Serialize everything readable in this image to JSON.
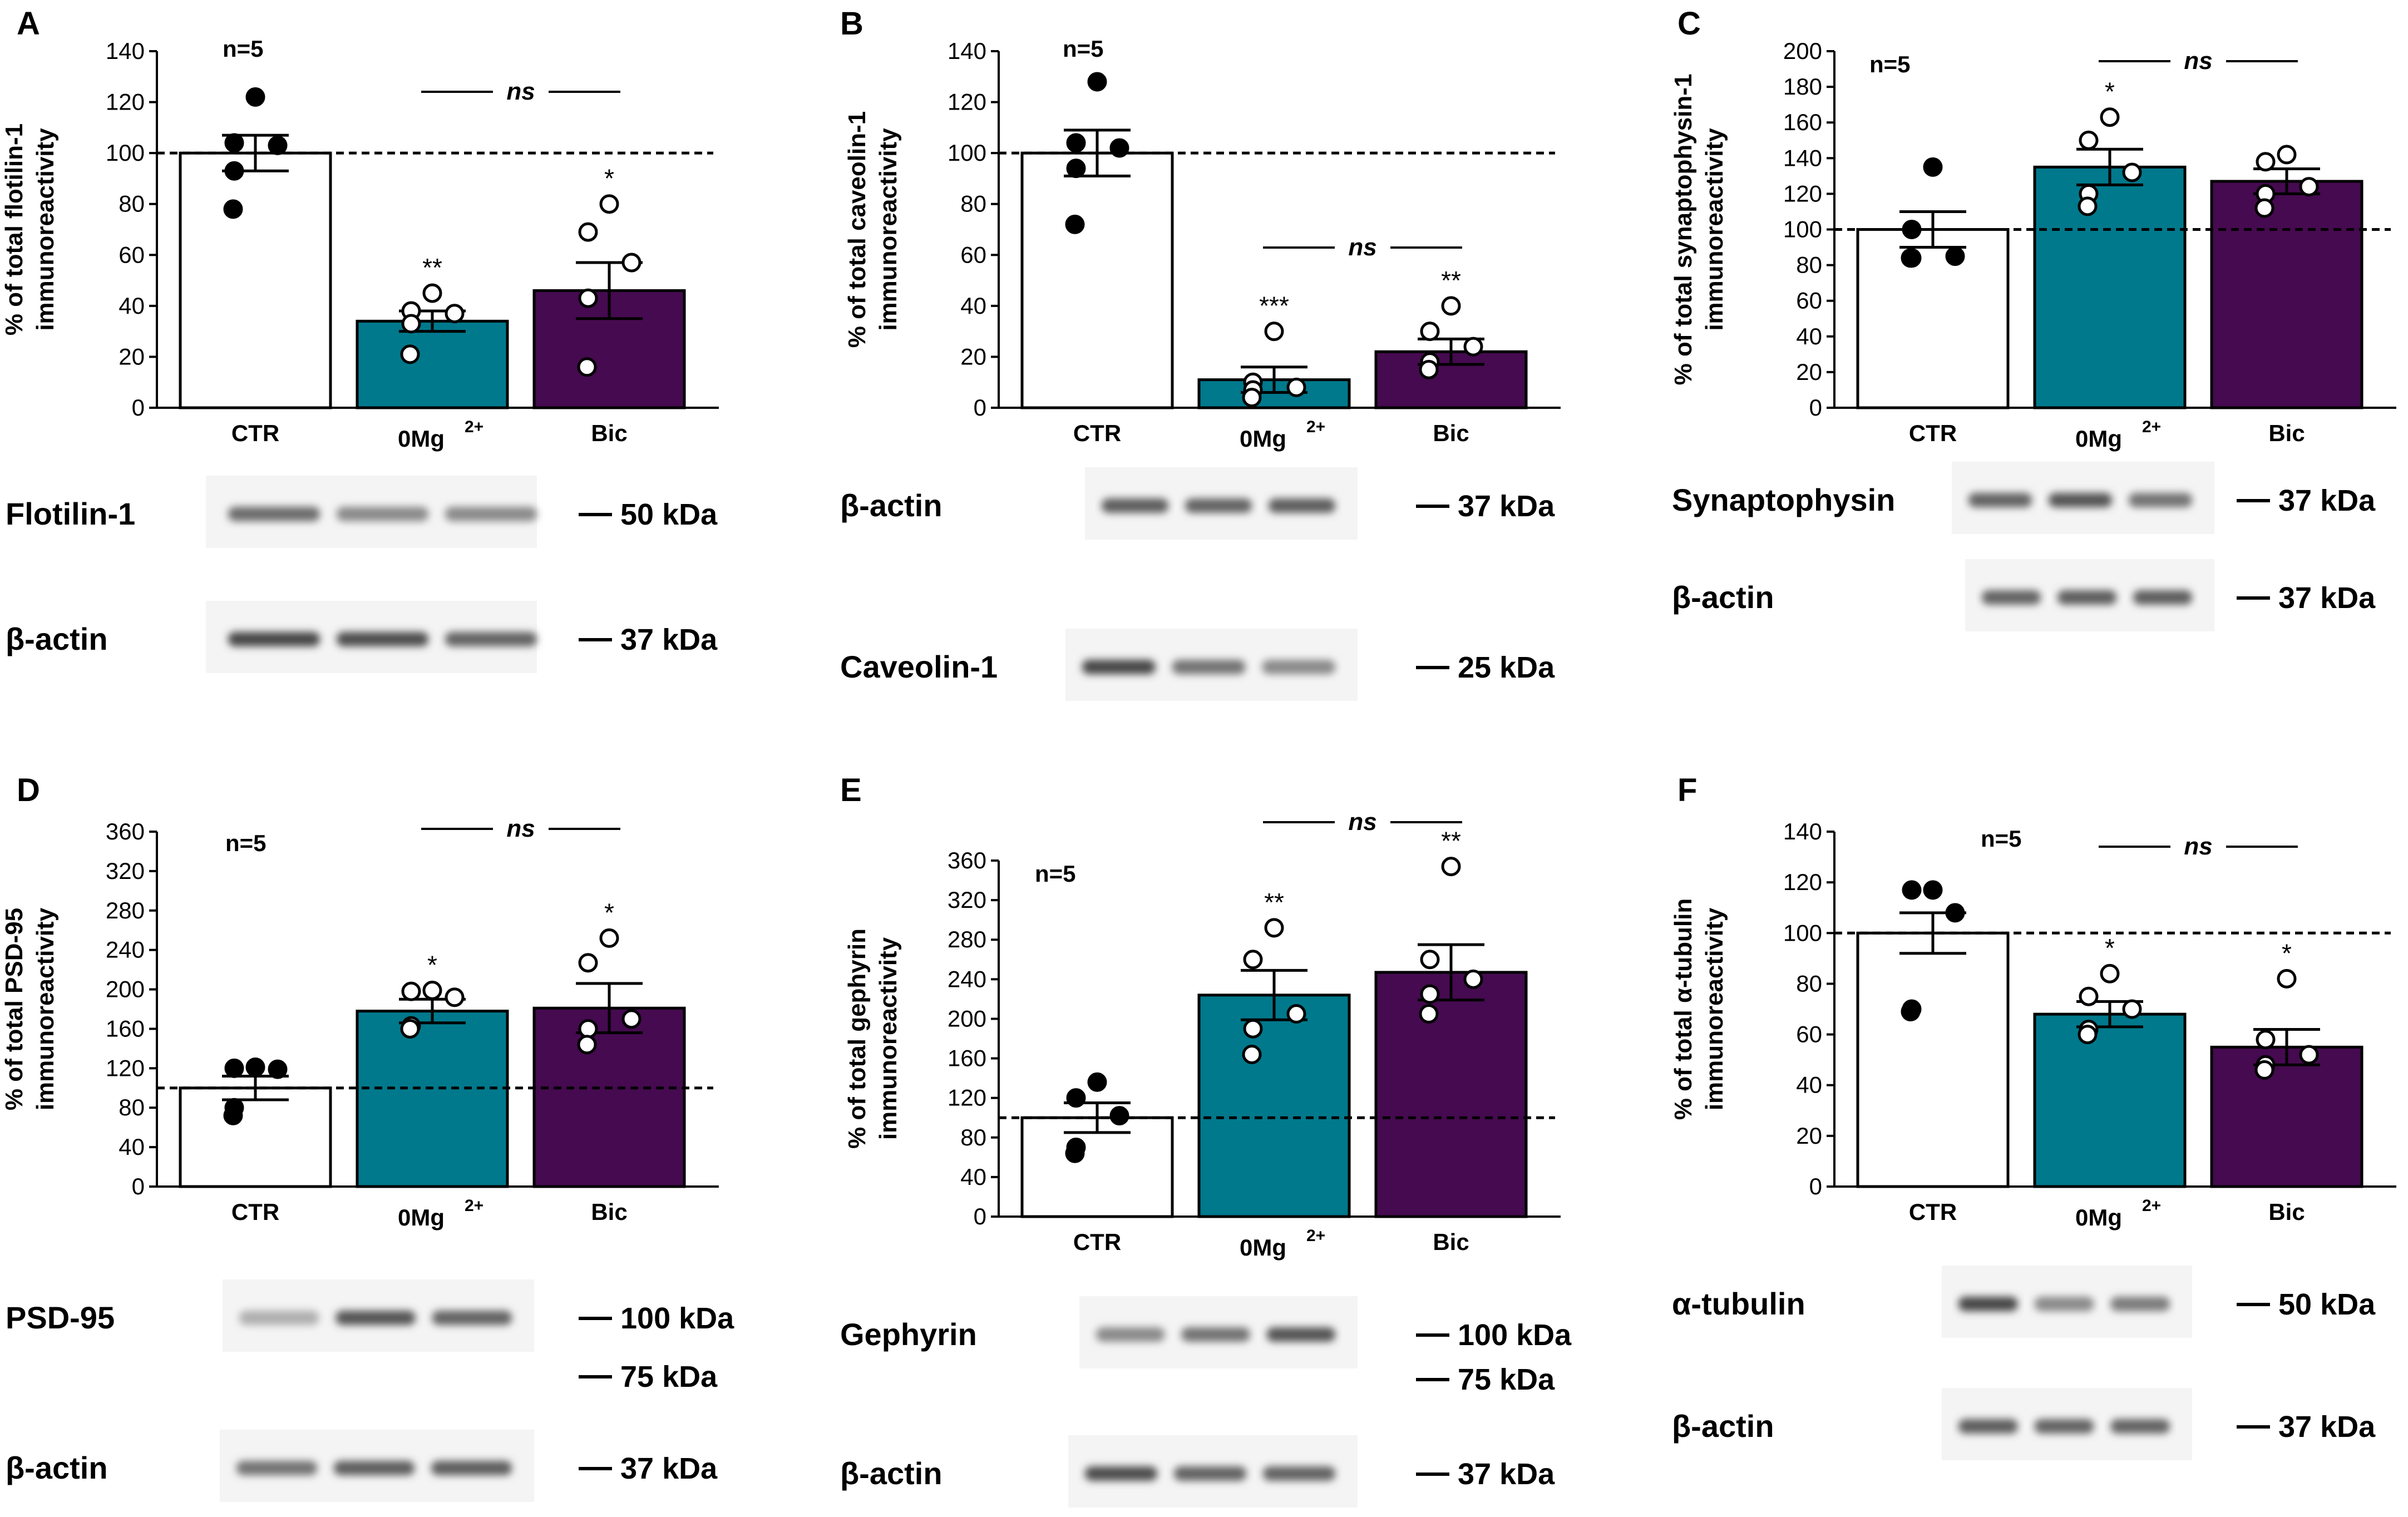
{
  "figure": {
    "title": ""
  },
  "colors": {
    "ctr": "#ffffff",
    "zeromg": "#00798c",
    "bic": "#450a4f",
    "axis": "#000000"
  },
  "chart_data": [
    {
      "panel": "A",
      "type": "bar",
      "n_label": "n=5",
      "ylabel": [
        "% of total flotilin-1",
        "immunoreactivity"
      ],
      "ylim": [
        0,
        140
      ],
      "yticks": [
        0,
        20,
        40,
        60,
        80,
        100,
        120,
        140
      ],
      "categories": [
        "CTR",
        "0Mg",
        "Bic"
      ],
      "means": [
        100,
        34,
        46
      ],
      "sems": [
        7,
        4,
        11
      ],
      "points": [
        [
          122,
          104,
          103,
          93,
          78
        ],
        [
          45,
          38,
          37,
          33,
          21
        ],
        [
          80,
          69,
          57,
          43,
          16
        ]
      ],
      "stars": [
        "",
        "**",
        "*"
      ],
      "ns_label": "ns",
      "blots": [
        {
          "label": "Flotilin-1",
          "kda": "50 kDa"
        },
        {
          "label": "β-actin",
          "kda": "37 kDa"
        }
      ]
    },
    {
      "panel": "B",
      "type": "bar",
      "n_label": "n=5",
      "ylabel": [
        "% of total caveolin-1",
        "immunoreactivity"
      ],
      "ylim": [
        0,
        140
      ],
      "yticks": [
        0,
        20,
        40,
        60,
        80,
        100,
        120,
        140
      ],
      "categories": [
        "CTR",
        "0Mg",
        "Bic"
      ],
      "means": [
        100,
        11,
        22
      ],
      "sems": [
        9,
        5,
        5
      ],
      "points": [
        [
          128,
          104,
          102,
          94,
          72
        ],
        [
          30,
          10,
          8,
          7,
          4
        ],
        [
          40,
          30,
          24,
          18,
          15
        ]
      ],
      "stars": [
        "",
        "***",
        "**"
      ],
      "ns_label": "ns",
      "blots": [
        {
          "label": "β-actin",
          "kda": "37 kDa"
        },
        {
          "label": "Caveolin-1",
          "kda": "25 kDa"
        }
      ]
    },
    {
      "panel": "C",
      "type": "bar",
      "n_label": "n=5",
      "ylabel": [
        "% of total synaptophysin-1",
        "immunoreactivity"
      ],
      "ylim": [
        0,
        200
      ],
      "yticks": [
        0,
        20,
        40,
        60,
        80,
        100,
        120,
        140,
        160,
        180,
        200
      ],
      "categories": [
        "CTR",
        "0Mg",
        "Bic"
      ],
      "means": [
        100,
        135,
        127
      ],
      "sems": [
        10,
        10,
        7
      ],
      "points": [
        [
          135,
          100,
          85,
          84,
          84
        ],
        [
          163,
          150,
          132,
          120,
          113
        ],
        [
          142,
          138,
          124,
          120,
          112
        ]
      ],
      "stars": [
        "",
        "*",
        ""
      ],
      "ns_label": "ns",
      "blots": [
        {
          "label": "Synaptophysin",
          "kda": "37 kDa"
        },
        {
          "label": "β-actin",
          "kda": "37 kDa"
        }
      ]
    },
    {
      "panel": "D",
      "type": "bar",
      "n_label": "n=5",
      "ylabel": [
        "% of total PSD-95",
        "immunoreactivity"
      ],
      "ylim": [
        0,
        360
      ],
      "yticks": [
        0,
        40,
        80,
        120,
        160,
        200,
        240,
        280,
        320,
        360
      ],
      "categories": [
        "CTR",
        "0Mg",
        "Bic"
      ],
      "means": [
        100,
        178,
        181
      ],
      "sems": [
        12,
        12,
        25
      ],
      "points": [
        [
          121,
          120,
          119,
          80,
          72
        ],
        [
          199,
          198,
          192,
          163,
          160
        ],
        [
          252,
          227,
          170,
          160,
          144
        ]
      ],
      "stars": [
        "",
        "*",
        "*"
      ],
      "ns_label": "ns",
      "blots": [
        {
          "label": "PSD-95",
          "kda": "100 kDa"
        },
        {
          "label": "",
          "kda": "75 kDa"
        },
        {
          "label": "β-actin",
          "kda": "37 kDa"
        }
      ]
    },
    {
      "panel": "E",
      "type": "bar",
      "n_label": "n=5",
      "ylabel": [
        "% of total gephyrin",
        "immunoreactivity"
      ],
      "ylim": [
        0,
        360
      ],
      "yticks": [
        0,
        40,
        80,
        120,
        160,
        200,
        240,
        280,
        320,
        360
      ],
      "categories": [
        "CTR",
        "0Mg",
        "Bic"
      ],
      "means": [
        100,
        224,
        247
      ],
      "sems": [
        15,
        25,
        28
      ],
      "points": [
        [
          136,
          120,
          102,
          70,
          64
        ],
        [
          292,
          260,
          205,
          190,
          164
        ],
        [
          354,
          260,
          240,
          225,
          205
        ]
      ],
      "stars": [
        "",
        "**",
        "**"
      ],
      "ns_label": "ns",
      "blots": [
        {
          "label": "Gephyrin",
          "kda": "100 kDa"
        },
        {
          "label": "",
          "kda": "75 kDa"
        },
        {
          "label": "β-actin",
          "kda": "37 kDa"
        }
      ]
    },
    {
      "panel": "F",
      "type": "bar",
      "n_label": "n=5",
      "ylabel": [
        "% of total α-tubulin",
        "immunoreactivity"
      ],
      "ylim": [
        0,
        140
      ],
      "yticks": [
        0,
        20,
        40,
        60,
        80,
        100,
        120,
        140
      ],
      "categories": [
        "CTR",
        "0Mg",
        "Bic"
      ],
      "means": [
        100,
        68,
        55
      ],
      "sems": [
        8,
        5,
        7
      ],
      "points": [
        [
          117,
          117,
          108,
          70,
          69
        ],
        [
          84,
          75,
          70,
          62,
          60
        ],
        [
          82,
          58,
          52,
          48,
          46
        ]
      ],
      "stars": [
        "",
        "*",
        "*"
      ],
      "ns_label": "ns",
      "blots": [
        {
          "label": "α-tubulin",
          "kda": "50 kDa"
        },
        {
          "label": "β-actin",
          "kda": "37 kDa"
        }
      ]
    }
  ]
}
